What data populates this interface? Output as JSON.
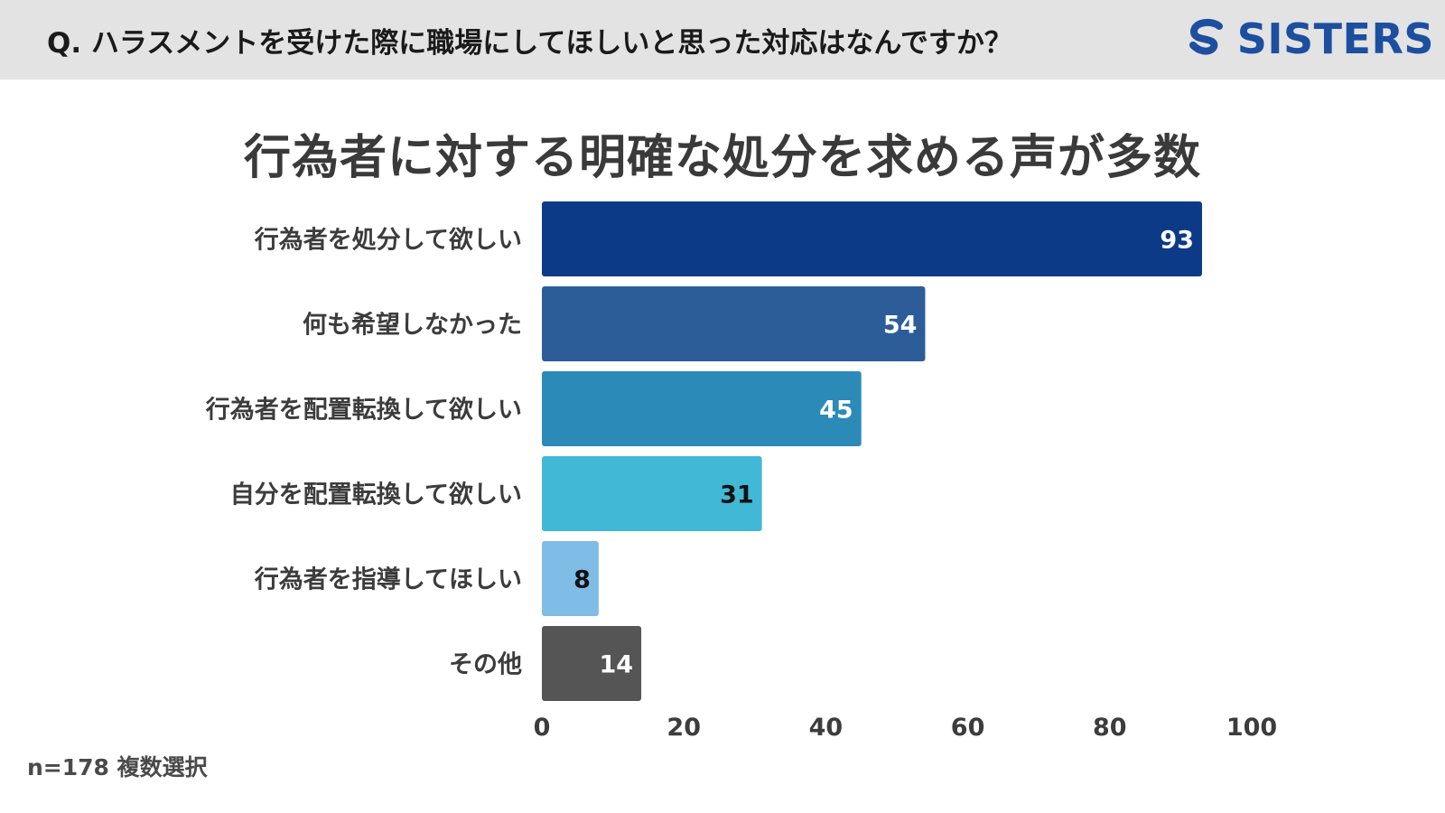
{
  "header": {
    "question": "Q. ハラスメントを受けた際に職場にしてほしいと思った対応はなんですか？",
    "logo_text": "SISTERS"
  },
  "colors": {
    "header_bg": "#e3e3e3",
    "brand": "#1c4fa0"
  },
  "chart_data": {
    "type": "bar",
    "orientation": "horizontal",
    "title": "行為者に対する明確な処分を求める声が多数",
    "categories": [
      "行為者を処分して欲しい",
      "何も希望しなかった",
      "行為者を配置転換して欲しい",
      "自分を配置転換して欲しい",
      "行為者を指導してほしい",
      "その他"
    ],
    "values": [
      93,
      54,
      45,
      31,
      8,
      14
    ],
    "bar_colors": [
      "#0d3a87",
      "#2c5d98",
      "#2b8ab8",
      "#41b8d6",
      "#7fbce6",
      "#555555"
    ],
    "label_colors": [
      "#ffffff",
      "#ffffff",
      "#ffffff",
      "#111111",
      "#111111",
      "#ffffff"
    ],
    "xlim": [
      0,
      100
    ],
    "xticks": [
      0,
      20,
      40,
      60,
      80,
      100
    ],
    "grid": false
  },
  "footnote": "n=178 複数選択"
}
